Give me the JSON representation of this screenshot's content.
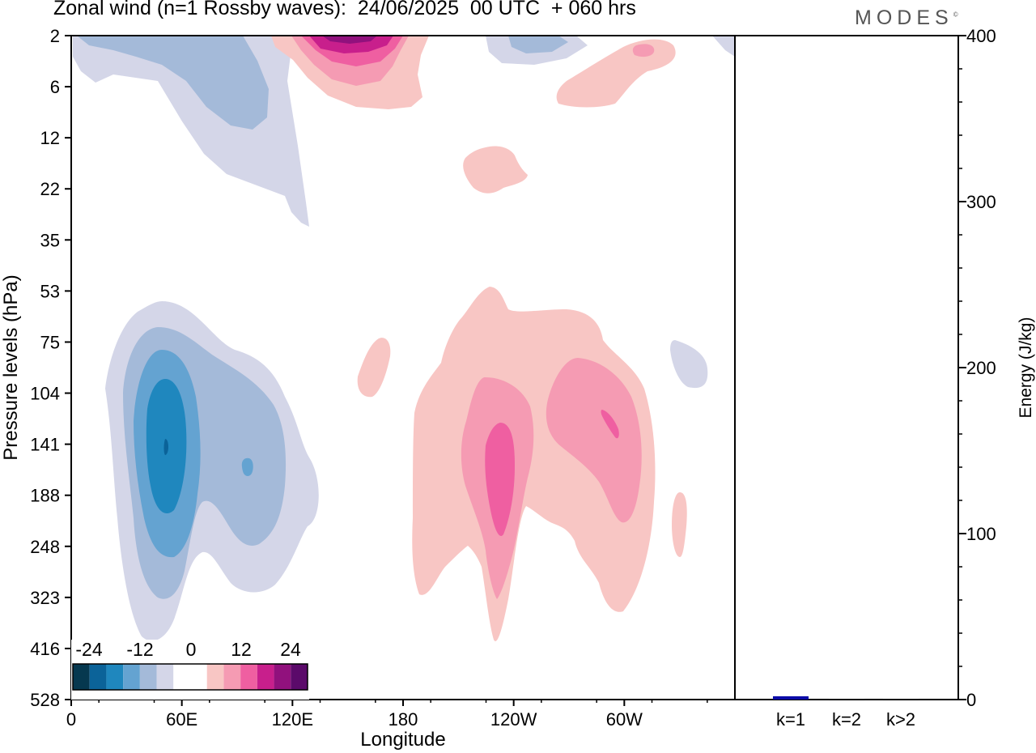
{
  "title": "Zonal wind (n=1 Rossby waves):  24/06/2025  00 UTC  + 060 hrs",
  "brand": "MODES",
  "brand_mark": "©",
  "colors": {
    "neg": [
      "#06384f",
      "#0b6399",
      "#1f87be",
      "#64a3d1",
      "#a4bad9",
      "#d4d6e8"
    ],
    "pos": [
      "#f8c6c4",
      "#f59bb3",
      "#ef5fa1",
      "#c81f8c",
      "#91117d",
      "#5b0a6a"
    ],
    "bar": "#0b0ba8"
  },
  "chart_data": [
    {
      "type": "heatmap",
      "xlabel": "Longitude",
      "ylabel": "Pressure levels (hPa)",
      "x_ticks": [
        "0",
        "60E",
        "120E",
        "180",
        "120W",
        "60W"
      ],
      "y_ticks": [
        "2",
        "6",
        "12",
        "22",
        "35",
        "53",
        "75",
        "104",
        "141",
        "188",
        "248",
        "323",
        "416",
        "528"
      ],
      "colorbar": {
        "labels": [
          "-24",
          "-12",
          "0",
          "12",
          "24"
        ],
        "levels": [
          -24,
          -12,
          0,
          12,
          24
        ]
      },
      "features": [
        {
          "sign": "negative",
          "center_lon": 50,
          "center_hPa": 141,
          "peak": -20
        },
        {
          "sign": "negative",
          "center_lon": 80,
          "center_hPa": 4,
          "peak": -8
        },
        {
          "sign": "positive",
          "center_lon": 150,
          "center_hPa": 3,
          "peak": 24
        },
        {
          "sign": "positive",
          "center_lon": 235,
          "center_hPa": 160,
          "peak": 16
        },
        {
          "sign": "positive",
          "center_lon": 290,
          "center_hPa": 130,
          "peak": 14
        }
      ]
    },
    {
      "type": "bar",
      "categories": [
        "k=1",
        "k=2",
        "k>2"
      ],
      "values": [
        2,
        0.5,
        0.5
      ],
      "ylabel": "Energy (J/kg)",
      "ylim": [
        0,
        400
      ],
      "y_ticks": [
        "0",
        "100",
        "200",
        "300",
        "400"
      ]
    }
  ]
}
